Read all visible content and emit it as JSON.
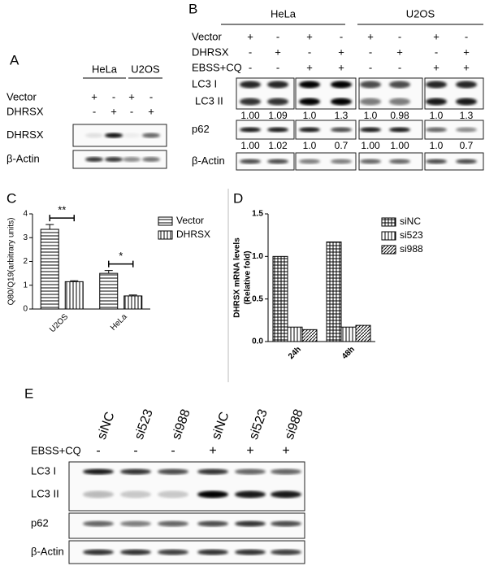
{
  "panel_a": {
    "label": "A",
    "groups": [
      "HeLa",
      "U2OS"
    ],
    "conditions": [
      {
        "name": "Vector",
        "marks": [
          "+",
          "-",
          "+",
          "-"
        ]
      },
      {
        "name": "DHRSX",
        "marks": [
          "-",
          "+",
          "-",
          "+"
        ]
      }
    ],
    "blots": [
      "DHRSX",
      "β-Actin"
    ]
  },
  "panel_b": {
    "label": "B",
    "groups": [
      "HeLa",
      "U2OS"
    ],
    "conditions": [
      {
        "name": "Vector",
        "marks": [
          "+",
          "-",
          "+",
          "-",
          "+",
          "-",
          "+",
          "-"
        ]
      },
      {
        "name": "DHRSX",
        "marks": [
          "-",
          "+",
          "-",
          "+",
          "-",
          "+",
          "-",
          "+"
        ]
      },
      {
        "name": "EBSS+CQ",
        "marks": [
          "-",
          "-",
          "+",
          "+",
          "-",
          "-",
          "+",
          "+"
        ]
      }
    ],
    "blots": [
      {
        "names": [
          "LC3 I",
          "LC3 II"
        ],
        "quantification": [
          "1.00",
          "1.09",
          "1.0",
          "1.3",
          "1.0",
          "0.98",
          "1.0",
          "1.3"
        ]
      },
      {
        "names": [
          "p62"
        ],
        "quantification": [
          "1.00",
          "1.02",
          "1.0",
          "0.7",
          "1.00",
          "1.00",
          "1.0",
          "0.7"
        ]
      },
      {
        "names": [
          "β-Actin"
        ]
      }
    ]
  },
  "chart_data": [
    {
      "type": "bar",
      "panel_label": "C",
      "y_label": [
        "Q80/Q19(arbitrary units)"
      ],
      "categories": [
        "U2OS",
        "HeLa"
      ],
      "series": [
        {
          "name": "Vector",
          "color": "#000000",
          "pattern": "horizontal",
          "values": [
            3.35,
            1.5
          ],
          "errors": [
            0.2,
            0.12
          ]
        },
        {
          "name": "DHRSX",
          "color": "#000000",
          "pattern": "vertical",
          "values": [
            1.15,
            0.55
          ],
          "errors": [
            0.04,
            0.04
          ]
        }
      ],
      "ylim": [
        0,
        4
      ],
      "yticks": [
        0,
        1,
        2,
        3,
        4
      ],
      "annotations": [
        "**",
        "*"
      ]
    },
    {
      "type": "bar",
      "panel_label": "D",
      "y_label": [
        "DHRSX mRNA levels",
        "(Relative fold)"
      ],
      "categories": [
        "24h",
        "48h"
      ],
      "series": [
        {
          "name": "siNC",
          "color": "#000000",
          "pattern": "crosshatch",
          "values": [
            1.0,
            1.17
          ]
        },
        {
          "name": "si523",
          "color": "#000000",
          "pattern": "vertical",
          "values": [
            0.17,
            0.17
          ]
        },
        {
          "name": "si988",
          "color": "#000000",
          "pattern": "diagonal",
          "values": [
            0.14,
            0.19
          ]
        }
      ],
      "ylim": [
        0,
        1.5
      ],
      "yticks": [
        {
          "value": 0,
          "label": "0.0"
        },
        {
          "value": 0.5,
          "label": "0.5"
        },
        {
          "value": 1,
          "label": "1.0"
        },
        {
          "value": 1.5,
          "label": "1.5"
        }
      ]
    }
  ],
  "panel_e": {
    "label": "E",
    "lanes": [
      "siNC",
      "si523",
      "si988",
      "siNC",
      "si523",
      "si988"
    ],
    "conditions": [
      {
        "name": "EBSS+CQ",
        "marks": [
          "-",
          "-",
          "-",
          "+",
          "+",
          "+"
        ]
      }
    ],
    "blots": [
      "LC3 I",
      "LC3 II",
      "p62",
      "β-Actin"
    ]
  }
}
